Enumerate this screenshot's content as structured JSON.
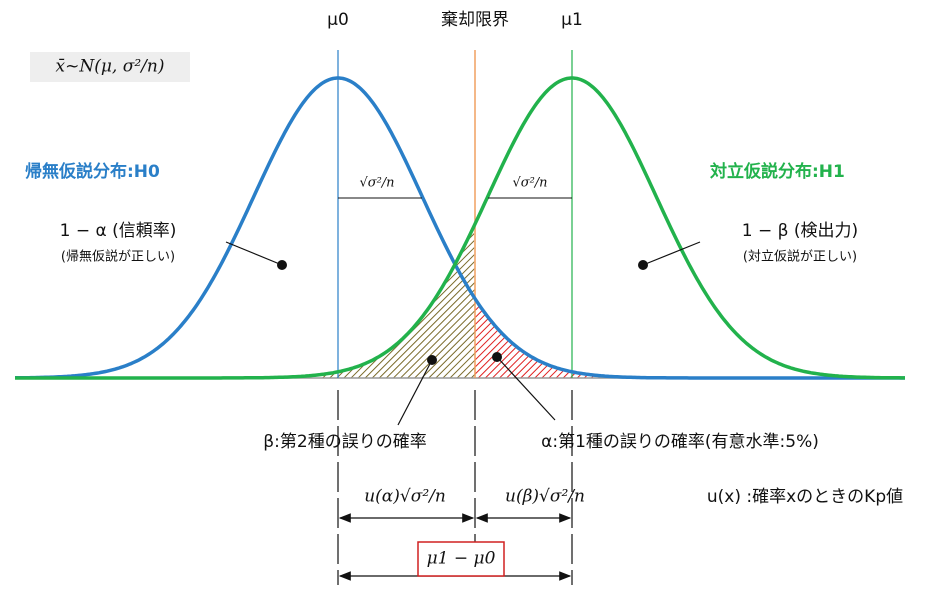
{
  "labels": {
    "mu0": "μ0",
    "critical": "棄却限界",
    "mu1": "μ1",
    "formula": "x̄~N(μ, σ²/n)",
    "h0": "帰無仮説分布:H0",
    "h1": "対立仮説分布:H1",
    "sd_left": "√σ²/n",
    "sd_right": "√σ²/n",
    "conf": "1 − α (信頼率)",
    "conf_note": "(帰無仮説が正しい)",
    "power": "1 − β (検出力)",
    "power_note": "(対立仮説が正しい)",
    "beta": "β:第2種の誤りの確率",
    "alpha": "α:第1種の誤りの確率(有意水準:5%)",
    "u_alpha": "u(α)√σ²/n",
    "u_beta": "u(β)√σ²/n",
    "u_def": "u(x) :確率xのときのKp値",
    "diff": "μ1 − μ0"
  }
}
